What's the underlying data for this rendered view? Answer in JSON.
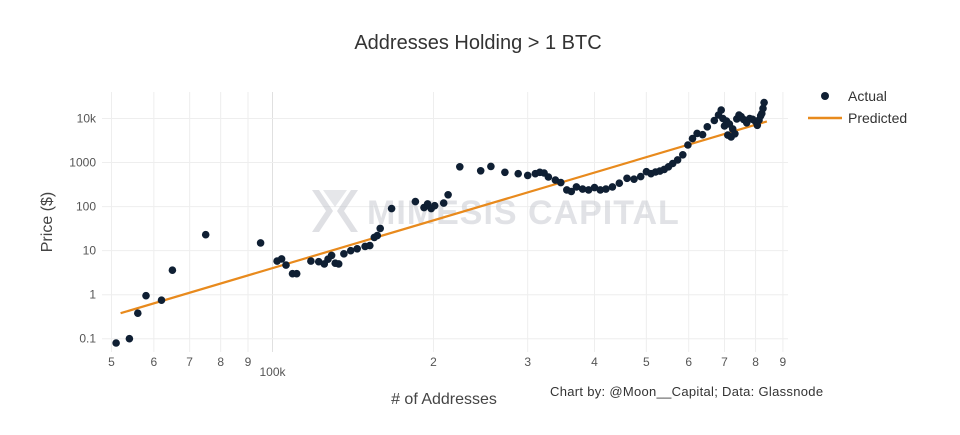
{
  "chart_data": {
    "type": "scatter",
    "title": "Addresses Holding > 1 BTC",
    "xlabel": "# of Addresses",
    "ylabel": "Price ($)",
    "x_scale": "log",
    "y_scale": "log",
    "xlim": [
      48000,
      920000
    ],
    "ylim": [
      0.05,
      40000
    ],
    "x_ticks": [
      {
        "value": 50000,
        "label": "5"
      },
      {
        "value": 60000,
        "label": "6"
      },
      {
        "value": 70000,
        "label": "7"
      },
      {
        "value": 80000,
        "label": "8"
      },
      {
        "value": 90000,
        "label": "9"
      },
      {
        "value": 100000,
        "label": "100k"
      },
      {
        "value": 200000,
        "label": "2"
      },
      {
        "value": 300000,
        "label": "3"
      },
      {
        "value": 400000,
        "label": "4"
      },
      {
        "value": 500000,
        "label": "5"
      },
      {
        "value": 600000,
        "label": "6"
      },
      {
        "value": 700000,
        "label": "7"
      },
      {
        "value": 800000,
        "label": "8"
      },
      {
        "value": 900000,
        "label": "9"
      }
    ],
    "y_ticks": [
      {
        "value": 0.1,
        "label": "0.1"
      },
      {
        "value": 1,
        "label": "1"
      },
      {
        "value": 10,
        "label": "10"
      },
      {
        "value": 100,
        "label": "100"
      },
      {
        "value": 1000,
        "label": "1000"
      },
      {
        "value": 10000,
        "label": "10k"
      }
    ],
    "grid": true,
    "legend_position": "top-right",
    "series": [
      {
        "name": "Actual",
        "kind": "markers",
        "color": "#0f1f33",
        "points": [
          [
            51000,
            0.08
          ],
          [
            54000,
            0.1
          ],
          [
            56000,
            0.38
          ],
          [
            58000,
            0.95
          ],
          [
            62000,
            0.75
          ],
          [
            65000,
            3.6
          ],
          [
            75000,
            23
          ],
          [
            95000,
            15
          ],
          [
            102000,
            5.8
          ],
          [
            104000,
            6.5
          ],
          [
            106000,
            4.7
          ],
          [
            109000,
            3.0
          ],
          [
            111000,
            3.0
          ],
          [
            118000,
            5.8
          ],
          [
            122000,
            5.6
          ],
          [
            125000,
            5.0
          ],
          [
            127000,
            6.4
          ],
          [
            129000,
            7.8
          ],
          [
            131000,
            5.2
          ],
          [
            133000,
            5.0
          ],
          [
            136000,
            8.5
          ],
          [
            140000,
            10
          ],
          [
            144000,
            11
          ],
          [
            149000,
            12.5
          ],
          [
            152000,
            13
          ],
          [
            155000,
            20
          ],
          [
            157000,
            22
          ],
          [
            159000,
            32
          ],
          [
            167000,
            90
          ],
          [
            185000,
            130
          ],
          [
            192000,
            95
          ],
          [
            195000,
            115
          ],
          [
            198000,
            90
          ],
          [
            201000,
            105
          ],
          [
            209000,
            120
          ],
          [
            213000,
            185
          ],
          [
            224000,
            800
          ],
          [
            245000,
            650
          ],
          [
            256000,
            820
          ],
          [
            272000,
            600
          ],
          [
            288000,
            560
          ],
          [
            300000,
            510
          ],
          [
            310000,
            560
          ],
          [
            316000,
            600
          ],
          [
            322000,
            580
          ],
          [
            328000,
            470
          ],
          [
            338000,
            400
          ],
          [
            346000,
            350
          ],
          [
            355000,
            240
          ],
          [
            362000,
            220
          ],
          [
            370000,
            280
          ],
          [
            380000,
            250
          ],
          [
            390000,
            240
          ],
          [
            400000,
            270
          ],
          [
            410000,
            240
          ],
          [
            420000,
            250
          ],
          [
            432000,
            280
          ],
          [
            445000,
            340
          ],
          [
            460000,
            440
          ],
          [
            474000,
            420
          ],
          [
            488000,
            480
          ],
          [
            500000,
            620
          ],
          [
            510000,
            560
          ],
          [
            520000,
            610
          ],
          [
            530000,
            640
          ],
          [
            540000,
            700
          ],
          [
            550000,
            800
          ],
          [
            560000,
            950
          ],
          [
            572000,
            1150
          ],
          [
            585000,
            1500
          ],
          [
            598000,
            2500
          ],
          [
            610000,
            3500
          ],
          [
            622000,
            4600
          ],
          [
            637000,
            4300
          ],
          [
            650000,
            6500
          ],
          [
            670000,
            9000
          ],
          [
            682000,
            12000
          ],
          [
            690000,
            15500
          ],
          [
            695000,
            10000
          ],
          [
            700000,
            6800
          ],
          [
            706000,
            8800
          ],
          [
            710000,
            4200
          ],
          [
            715000,
            7500
          ],
          [
            720000,
            3800
          ],
          [
            725000,
            5800
          ],
          [
            732000,
            4500
          ],
          [
            738000,
            9800
          ],
          [
            745000,
            12000
          ],
          [
            752000,
            11000
          ],
          [
            760000,
            9500
          ],
          [
            770000,
            8000
          ],
          [
            780000,
            10000
          ],
          [
            790000,
            9600
          ],
          [
            800000,
            8600
          ],
          [
            806000,
            7000
          ],
          [
            812000,
            9200
          ],
          [
            818000,
            11500
          ],
          [
            822000,
            13000
          ],
          [
            826000,
            17000
          ],
          [
            830000,
            23000
          ]
        ]
      },
      {
        "name": "Predicted",
        "kind": "line",
        "color": "#e88a1d",
        "points": [
          [
            52000,
            0.38
          ],
          [
            840000,
            8600
          ]
        ]
      }
    ],
    "annotations": [
      "Chart by: @Moon__Capital; Data: Glassnode"
    ],
    "watermark": "MIMESIS CAPITAL"
  }
}
